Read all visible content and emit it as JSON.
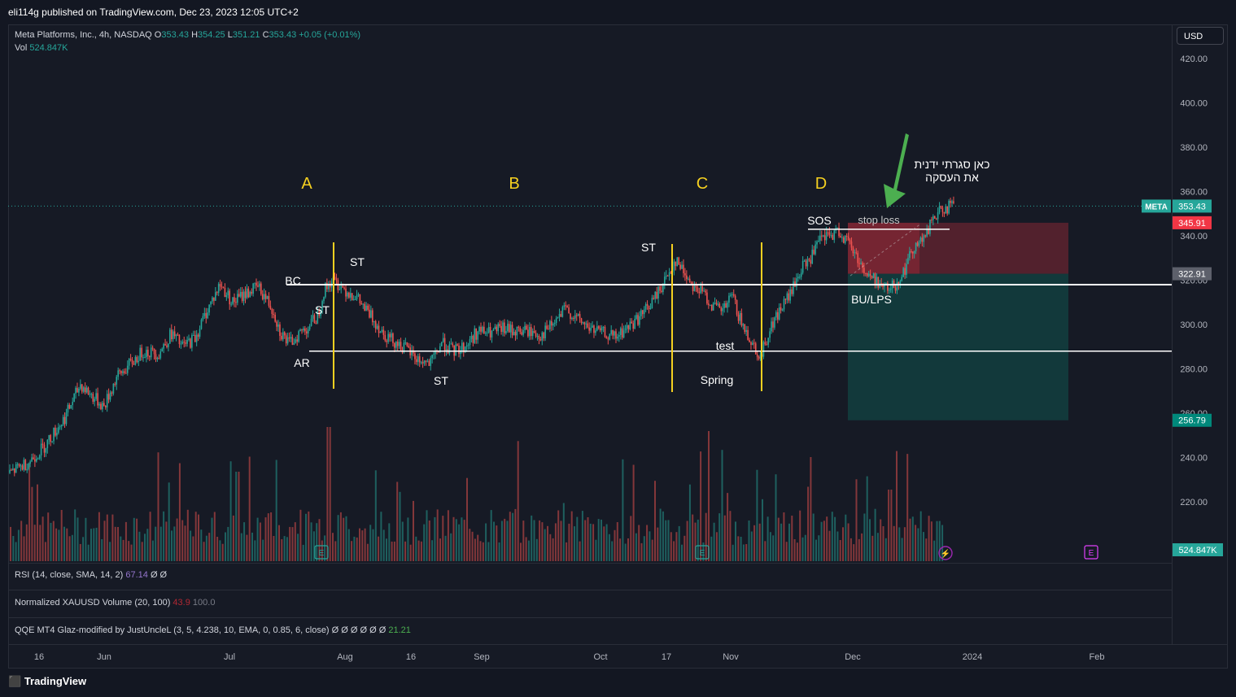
{
  "publisher": "eli114g published on TradingView.com, Dec 23, 2023 12:05 UTC+2",
  "legend": {
    "symbol": "Meta Platforms, Inc., 4h, NASDAQ",
    "o_label": "O",
    "o_value": "353.43",
    "h_label": "H",
    "h_value": "354.25",
    "l_label": "L",
    "l_value": "351.21",
    "c_label": "C",
    "c_value": "353.43",
    "change": "+0.05 (+0.01%)",
    "vol_label": "Vol",
    "vol_value": "524.847K"
  },
  "currency_button": "USD",
  "indicators": {
    "rsi": {
      "label": "RSI (14, close, SMA, 14, 2)",
      "value": "67.14",
      "extra": "Ø Ø"
    },
    "xau": {
      "label": "Normalized XAUUSD Volume (20, 100)",
      "value": "43.9",
      "extra": "100.0"
    },
    "qqe": {
      "label": "QQE MT4 Glaz-modified by JustUncleL (3, 5, 4.238, 10, EMA, 0, 0.85, 6, close)",
      "extra": "Ø Ø Ø Ø Ø Ø",
      "value": "21.21"
    }
  },
  "footer_logo": "TradingView",
  "colors": {
    "up": "#26a69a",
    "down": "#ef5350",
    "phase": "#f5d020",
    "bg": "#161a25"
  },
  "chart_data": {
    "type": "candlestick",
    "symbol": "META",
    "interval": "4h",
    "price_axis": [
      "420.00",
      "400.00",
      "380.00",
      "360.00",
      "340.00",
      "300.00",
      "280.00",
      "260.00",
      "240.00",
      "220.00"
    ],
    "price_axis_values": [
      420,
      400,
      380,
      360,
      340,
      300,
      280,
      260,
      240,
      220
    ],
    "ylim": [
      207,
      437
    ],
    "time_axis": [
      "16",
      "Jun",
      "Jul",
      "Aug",
      "16",
      "Sep",
      "Oct",
      "17",
      "Nov",
      "Dec",
      "2024",
      "Feb"
    ],
    "price_badges": [
      {
        "label": "META",
        "value": "353.43",
        "price": 353.43,
        "color": "#26a69a"
      },
      {
        "value": "345.91",
        "price": 345.91,
        "color": "#f23645"
      },
      {
        "value": "322.91",
        "price": 322.91,
        "color": "#5d606b"
      },
      {
        "value": "256.79",
        "price": 256.79,
        "color": "#00897b"
      },
      {
        "value": "524.847K",
        "color": "#26a69a"
      }
    ],
    "hidden_tick": "320.00",
    "close_anchors": [
      [
        0,
        233
      ],
      [
        12,
        238
      ],
      [
        22,
        245
      ],
      [
        35,
        258
      ],
      [
        45,
        273
      ],
      [
        52,
        268
      ],
      [
        60,
        263
      ],
      [
        68,
        276
      ],
      [
        78,
        283
      ],
      [
        85,
        288
      ],
      [
        95,
        287
      ],
      [
        103,
        296
      ],
      [
        110,
        290
      ],
      [
        118,
        294
      ],
      [
        126,
        307
      ],
      [
        134,
        318
      ],
      [
        142,
        310
      ],
      [
        150,
        314
      ],
      [
        158,
        317
      ],
      [
        163,
        312
      ],
      [
        168,
        306
      ],
      [
        172,
        297
      ],
      [
        178,
        291
      ],
      [
        184,
        296
      ],
      [
        190,
        299
      ],
      [
        196,
        304
      ],
      [
        200,
        315
      ],
      [
        205,
        320
      ],
      [
        210,
        318
      ],
      [
        215,
        315
      ],
      [
        220,
        313
      ],
      [
        226,
        307
      ],
      [
        232,
        302
      ],
      [
        238,
        296
      ],
      [
        246,
        292
      ],
      [
        254,
        288
      ],
      [
        260,
        284
      ],
      [
        268,
        282
      ],
      [
        275,
        292
      ],
      [
        282,
        288
      ],
      [
        290,
        290
      ],
      [
        298,
        297
      ],
      [
        306,
        296
      ],
      [
        314,
        298
      ],
      [
        322,
        297
      ],
      [
        330,
        297
      ],
      [
        338,
        295
      ],
      [
        346,
        300
      ],
      [
        354,
        307
      ],
      [
        362,
        302
      ],
      [
        370,
        298
      ],
      [
        378,
        296
      ],
      [
        386,
        294
      ],
      [
        394,
        299
      ],
      [
        402,
        304
      ],
      [
        410,
        311
      ],
      [
        418,
        321
      ],
      [
        424,
        329
      ],
      [
        430,
        323
      ],
      [
        436,
        317
      ],
      [
        442,
        314
      ],
      [
        448,
        308
      ],
      [
        454,
        306
      ],
      [
        460,
        313
      ],
      [
        466,
        300
      ],
      [
        472,
        293
      ],
      [
        478,
        285
      ],
      [
        484,
        298
      ],
      [
        490,
        306
      ],
      [
        498,
        315
      ],
      [
        504,
        325
      ],
      [
        510,
        330
      ],
      [
        516,
        338
      ],
      [
        522,
        340
      ],
      [
        528,
        342
      ],
      [
        534,
        337
      ],
      [
        540,
        330
      ],
      [
        546,
        322
      ],
      [
        552,
        320
      ],
      [
        558,
        316
      ],
      [
        564,
        318
      ],
      [
        570,
        325
      ],
      [
        576,
        336
      ],
      [
        582,
        338
      ],
      [
        588,
        348
      ],
      [
        596,
        353
      ],
      [
        602,
        353
      ]
    ],
    "volume_scale_max": 100,
    "volumes_note": "relative volume bars",
    "levels": [
      {
        "name": "upper-range",
        "price": 318
      },
      {
        "name": "lower-range",
        "price": 288
      },
      {
        "name": "sos-line",
        "price": 343
      }
    ],
    "trade_box": {
      "entry": 322.91,
      "stop": 345.91,
      "target": 256.79
    },
    "phase_labels": [
      "A",
      "B",
      "C",
      "D"
    ],
    "annotations": [
      "BC",
      "AR",
      "ST",
      "ST",
      "ST",
      "ST",
      "Spring",
      "test",
      "SOS",
      "BU/LPS",
      "stop loss"
    ],
    "hebrew_note_line1": "כאן סגרתי ידנית",
    "hebrew_note_line2": "את העסקה",
    "markers": [
      "E",
      "E",
      "E"
    ]
  }
}
